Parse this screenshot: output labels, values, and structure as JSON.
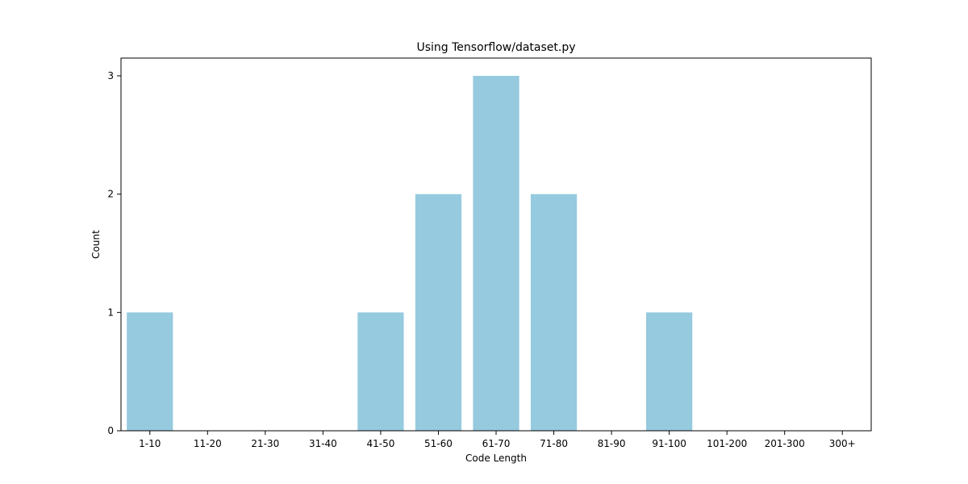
{
  "chart_data": {
    "type": "bar",
    "title": "Using Tensorflow/dataset.py",
    "xlabel": "Code Length",
    "ylabel": "Count",
    "categories": [
      "1-10",
      "11-20",
      "21-30",
      "31-40",
      "41-50",
      "51-60",
      "61-70",
      "71-80",
      "81-90",
      "91-100",
      "101-200",
      "201-300",
      "300+"
    ],
    "values": [
      1,
      0,
      0,
      0,
      1,
      2,
      3,
      2,
      0,
      1,
      0,
      0,
      0
    ],
    "ylim": [
      0,
      3.15
    ],
    "yticks": [
      0,
      1,
      2,
      3
    ],
    "bar_color": "#96cade",
    "grid": false,
    "legend": "none"
  }
}
